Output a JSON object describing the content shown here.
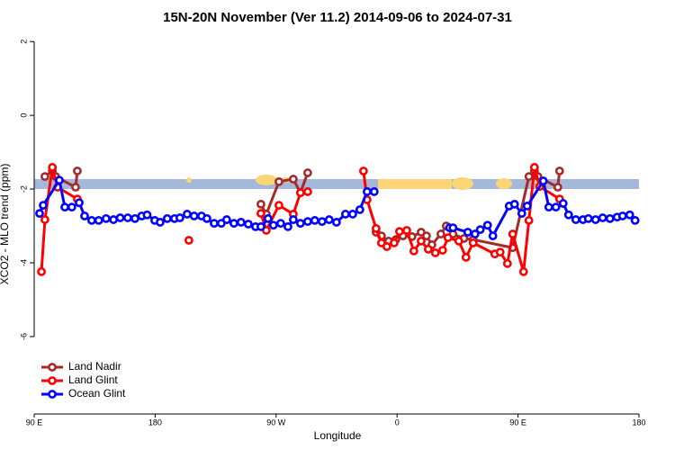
{
  "chart_data": {
    "type": "line",
    "title": "15N-20N November (Ver 11.2)   2014-09-06 to 2024-07-31",
    "x_label": "Longitude",
    "y_label": "XCO2 - MLO trend (ppm)",
    "xlim": [
      90,
      540
    ],
    "ylim": [
      -8.1,
      2.2
    ],
    "xticks": [
      {
        "value": 90,
        "label": "90 E"
      },
      180,
      {
        "value": 270,
        "label": "90 W"
      },
      {
        "value": 360,
        "label": "0"
      },
      {
        "value": 450,
        "label": "90 E"
      },
      {
        "value": 540,
        "label": "180"
      }
    ],
    "yticks": [
      2,
      0,
      -2,
      -4,
      -6
    ],
    "legend": "bottom-left",
    "series": [
      {
        "name": "Land Nadir",
        "color": "#a52a2a",
        "x": [
          98,
          103.5,
          106,
          120.8,
          122.1,
          null,
          258.7,
          262.7,
          272.1,
          282.8,
          288.1,
          293.5,
          null,
          344.4,
          348.4,
          353.7,
          359.1,
          364.4,
          371.1,
          377.9,
          381.9,
          385.9,
          392.6,
          396.6,
          401.6,
          409.7,
          416.6,
          446,
          458.1,
          462.2,
          464.8,
          479.6,
          480.9
        ],
        "values": [
          -1.66,
          -1.51,
          -1.66,
          -1.95,
          -1.51,
          null,
          -2.41,
          -2.68,
          -1.8,
          -1.73,
          -2.1,
          -1.56,
          null,
          -3.17,
          -3.27,
          -3.41,
          -3.37,
          -3.27,
          -3.29,
          -3.17,
          -3.27,
          -3.51,
          -3.22,
          -3.0,
          -3.22,
          -3.34,
          -3.37,
          -3.59,
          -1.66,
          -1.51,
          -1.66,
          -1.95,
          -1.51
        ]
      },
      {
        "name": "Land Glint",
        "color": "#ff0000",
        "x": [
          95.4,
          98,
          103.5,
          107.4,
          122.1,
          null,
          205.1,
          null,
          258.7,
          262.7,
          272.1,
          282.8,
          288.1,
          293.5,
          null,
          335,
          337.7,
          344.4,
          348.4,
          352.4,
          357.8,
          361.8,
          367.2,
          372.5,
          377.9,
          383.2,
          388.5,
          393.9,
          397.9,
          405.9,
          411.3,
          416.6,
          432.7,
          436.7,
          442.1,
          446,
          454.1,
          458.1,
          462.2,
          466.2,
          480.9
        ],
        "values": [
          -4.24,
          -2.83,
          -1.41,
          -1.95,
          -2.27,
          null,
          -3.39,
          null,
          -2.66,
          -3.12,
          -2.44,
          -2.68,
          -2.1,
          -2.07,
          null,
          -1.51,
          -2.29,
          -3.07,
          -3.46,
          -3.56,
          -3.46,
          -3.15,
          -3.12,
          -3.68,
          -3.41,
          -3.63,
          -3.73,
          -3.66,
          -3.32,
          -3.41,
          -3.85,
          -3.46,
          -3.76,
          -3.71,
          -4.02,
          -3.22,
          -4.24,
          -2.85,
          -1.41,
          -1.93,
          -2.27
        ]
      },
      {
        "name": "Ocean Glint",
        "color": "#0000ff",
        "x": [
          94,
          96.7,
          108.7,
          112.8,
          118,
          123.5,
          127.5,
          132.8,
          138,
          143.5,
          149,
          154,
          159.6,
          165,
          170,
          174,
          179.7,
          183.7,
          189,
          194.4,
          198.4,
          203.8,
          209,
          214.5,
          218.5,
          223.9,
          229.2,
          233.2,
          238.6,
          243.9,
          249.3,
          254.7,
          258.7,
          264,
          268,
          273.4,
          278.8,
          282.8,
          288.1,
          293.5,
          298.8,
          304.2,
          309.5,
          314.9,
          321.6,
          327,
          332.3,
          337.7,
          343,
          null,
          399,
          401.6,
          412.6,
          418,
          421.9,
          427.3,
          431.3,
          443.4,
          447.4,
          452.8,
          456.8,
          468.8,
          472.9,
          478.2,
          483.6,
          487.6,
          493,
          498.3,
          502.3,
          507.7,
          513,
          518.4,
          523.7,
          527.8,
          533.1,
          537.1
        ],
        "values": [
          -2.66,
          -2.44,
          -1.76,
          -2.49,
          -2.49,
          -2.37,
          -2.73,
          -2.85,
          -2.85,
          -2.8,
          -2.83,
          -2.78,
          -2.78,
          -2.8,
          -2.73,
          -2.7,
          -2.85,
          -2.9,
          -2.8,
          -2.8,
          -2.78,
          -2.68,
          -2.73,
          -2.73,
          -2.8,
          -2.93,
          -2.93,
          -2.83,
          -2.93,
          -2.9,
          -2.95,
          -3.02,
          -3.02,
          -2.8,
          -2.98,
          -2.93,
          -3.02,
          -2.83,
          -2.93,
          -2.88,
          -2.85,
          -2.88,
          -2.83,
          -2.9,
          -2.68,
          -2.68,
          -2.56,
          -2.07,
          -2.07,
          null,
          -3.05,
          -3.05,
          -3.17,
          -3.22,
          -3.1,
          -2.98,
          -3.27,
          -2.46,
          -2.41,
          -2.66,
          -2.46,
          -1.78,
          -2.49,
          -2.49,
          -2.39,
          -2.7,
          -2.83,
          -2.83,
          -2.8,
          -2.83,
          -2.78,
          -2.8,
          -2.76,
          -2.73,
          -2.7,
          -2.85
        ]
      }
    ]
  }
}
